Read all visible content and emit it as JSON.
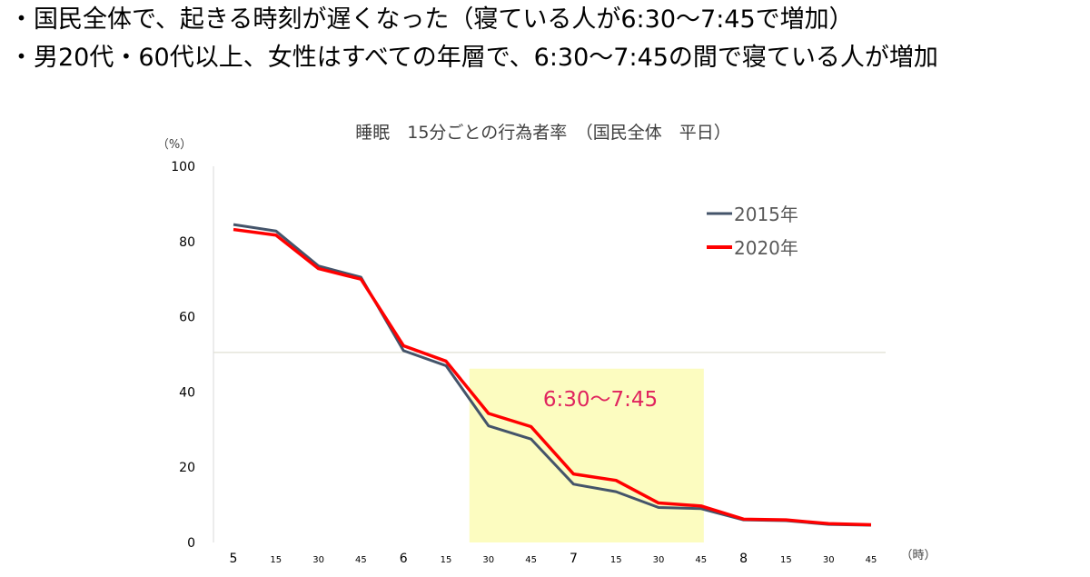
{
  "bullets": [
    "・国民全体で、起きる時刻が遅くなった（寝ている人が6:30〜7:45で増加）",
    "・男20代・60代以上、女性はすべての年層で、6:30〜7:45の間で寝ている人が増加"
  ],
  "chart_data": {
    "type": "line",
    "title": "睡眠　15分ごとの行為者率　（国民全体　平日）",
    "ylabel": "（%）",
    "xlabel": "（時）",
    "ylim": [
      0,
      100
    ],
    "yticks": [
      0,
      20,
      40,
      60,
      80,
      100
    ],
    "categories": [
      "5",
      "15",
      "30",
      "45",
      "6",
      "15",
      "30",
      "45",
      "7",
      "15",
      "30",
      "45",
      "8",
      "15",
      "30",
      "45"
    ],
    "series": [
      {
        "name": "2015年",
        "color": "#44546a",
        "values": [
          84.5,
          82.8,
          73.5,
          70.5,
          51,
          47,
          31,
          27.5,
          15.5,
          13.5,
          9.3,
          9,
          6,
          5.8,
          4.8,
          4.6
        ]
      },
      {
        "name": "2020年",
        "color": "#ff0000",
        "values": [
          83.2,
          81.7,
          72.8,
          70,
          52.3,
          48.2,
          34.3,
          30.8,
          18.2,
          16.5,
          10.5,
          9.7,
          6.2,
          6,
          5,
          4.7
        ]
      }
    ],
    "highlight": {
      "from": 6,
      "to": 11,
      "label": "6:30〜7:45",
      "color": "#fcfcc0"
    },
    "reference_line": {
      "y": 50.5,
      "color": "#d9d9c9"
    },
    "legend": "top-right",
    "grid": false
  }
}
